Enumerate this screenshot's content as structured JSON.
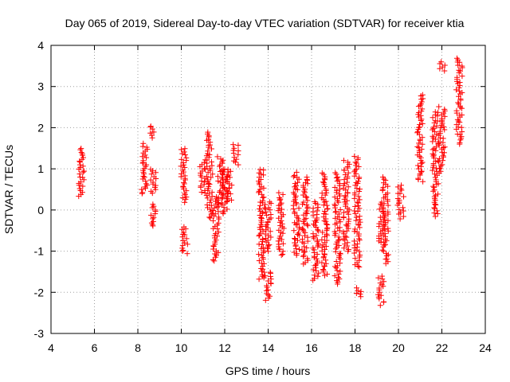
{
  "chart_data": {
    "type": "scatter",
    "title": "Day 065 of 2019, Sidereal Day-to-day VTEC variation (SDTVAR) for receiver ktia",
    "xlabel": "GPS time / hours",
    "ylabel": "SDTVAR / TECUs",
    "xlim": [
      4,
      24
    ],
    "ylim": [
      -3,
      4
    ],
    "xticks": [
      "4",
      "6",
      "8",
      "10",
      "12",
      "14",
      "16",
      "18",
      "20",
      "22",
      "24"
    ],
    "yticks": [
      "-3",
      "-2",
      "-1",
      "0",
      "1",
      "2",
      "3",
      "4"
    ],
    "grid": true,
    "marker": "+",
    "color": "#ff0000",
    "series": [
      {
        "name": "ktia",
        "clusters": [
          {
            "x": 5.4,
            "y": [
              0.35,
              1.5
            ]
          },
          {
            "x": 8.3,
            "y": [
              0.4,
              1.6
            ]
          },
          {
            "x": 8.7,
            "y": [
              1.75,
              2.05
            ]
          },
          {
            "x": 8.7,
            "y": [
              -0.4,
              0.15
            ]
          },
          {
            "x": 8.7,
            "y": [
              0.4,
              1.0
            ]
          },
          {
            "x": 10.1,
            "y": [
              0.2,
              1.5
            ]
          },
          {
            "x": 10.15,
            "y": [
              -1.05,
              -0.4
            ]
          },
          {
            "x": 11.0,
            "y": [
              0.4,
              1.2
            ]
          },
          {
            "x": 11.3,
            "y": [
              -0.2,
              1.9
            ]
          },
          {
            "x": 11.6,
            "y": [
              -1.25,
              0.3
            ]
          },
          {
            "x": 11.8,
            "y": [
              0.1,
              1.3
            ]
          },
          {
            "x": 12.0,
            "y": [
              -0.1,
              1.0
            ]
          },
          {
            "x": 12.2,
            "y": [
              0.2,
              1.0
            ]
          },
          {
            "x": 12.5,
            "y": [
              1.1,
              1.6
            ]
          },
          {
            "x": 13.7,
            "y": [
              -1.7,
              1.0
            ]
          },
          {
            "x": 14.0,
            "y": [
              -2.2,
              -1.5
            ]
          },
          {
            "x": 14.0,
            "y": [
              -1.0,
              0.2
            ]
          },
          {
            "x": 14.6,
            "y": [
              -1.1,
              0.4
            ]
          },
          {
            "x": 15.3,
            "y": [
              -1.1,
              0.9
            ]
          },
          {
            "x": 15.7,
            "y": [
              -1.3,
              0.8
            ]
          },
          {
            "x": 16.2,
            "y": [
              -1.7,
              0.2
            ]
          },
          {
            "x": 16.6,
            "y": [
              -1.6,
              0.9
            ]
          },
          {
            "x": 17.2,
            "y": [
              -1.8,
              0.9
            ]
          },
          {
            "x": 17.6,
            "y": [
              -1.0,
              1.2
            ]
          },
          {
            "x": 18.1,
            "y": [
              -1.4,
              1.3
            ]
          },
          {
            "x": 18.2,
            "y": [
              -2.1,
              -1.9
            ]
          },
          {
            "x": 19.2,
            "y": [
              -2.3,
              -1.6
            ]
          },
          {
            "x": 19.2,
            "y": [
              -0.8,
              0.2
            ]
          },
          {
            "x": 19.4,
            "y": [
              -1.3,
              0.8
            ]
          },
          {
            "x": 20.1,
            "y": [
              -0.2,
              0.6
            ]
          },
          {
            "x": 21.0,
            "y": [
              0.7,
              2.8
            ]
          },
          {
            "x": 21.7,
            "y": [
              -0.15,
              2.4
            ]
          },
          {
            "x": 22.0,
            "y": [
              0.9,
              2.5
            ]
          },
          {
            "x": 22.0,
            "y": [
              3.4,
              3.6
            ]
          },
          {
            "x": 22.8,
            "y": [
              1.6,
              3.7
            ]
          }
        ]
      }
    ]
  }
}
